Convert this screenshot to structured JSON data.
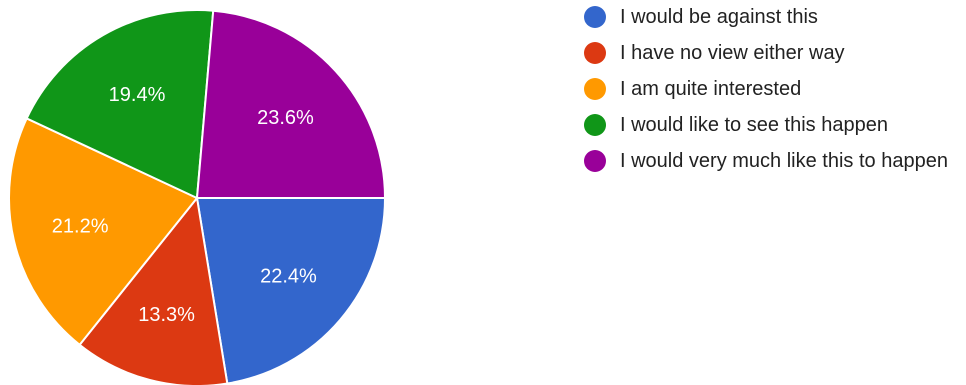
{
  "chart_data": {
    "type": "pie",
    "categories": [
      "I would be against this",
      "I have no view either way",
      "I am quite interested",
      "I would like to see this happen",
      "I would very much like this to happen"
    ],
    "values": [
      22.4,
      13.3,
      21.2,
      19.4,
      23.6
    ],
    "value_labels": [
      "22.4%",
      "13.3%",
      "21.2%",
      "19.4%",
      "23.6%"
    ],
    "colors": [
      "#3366cc",
      "#dc3912",
      "#ff9900",
      "#109618",
      "#990099"
    ],
    "legend_position": "right",
    "start_direction": "3 o'clock, clockwise"
  }
}
